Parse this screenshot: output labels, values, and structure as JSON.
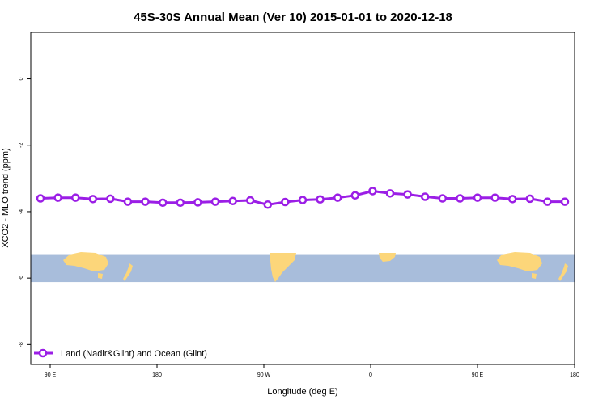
{
  "chart_data": {
    "type": "line",
    "title": "45S-30S Annual Mean (Ver 10)   2015-01-01 to 2020-12-18",
    "xlabel": "Longitude (deg E)",
    "ylabel": "XCO2 - MLO trend (ppm)",
    "xlim": [
      -100,
      180
    ],
    "ylim": [
      -8.6,
      1.4
    ],
    "x_ticks": [
      {
        "value": -90,
        "label": "90 E"
      },
      {
        "value": -35,
        "label": "180"
      },
      {
        "value": 20,
        "label": "90 W"
      },
      {
        "value": 75,
        "label": "0"
      },
      {
        "value": 130,
        "label": "90 E"
      },
      {
        "value": 180,
        "label": "180"
      }
    ],
    "y_ticks": [
      {
        "value": 0,
        "label": "0"
      },
      {
        "value": -2,
        "label": "-2"
      },
      {
        "value": -4,
        "label": "-4"
      },
      {
        "value": -6,
        "label": "-6"
      },
      {
        "value": -8,
        "label": "-8"
      }
    ],
    "grid": false,
    "legend_position": "bottom-left",
    "series": [
      {
        "name": "Land (Nadir&Glint) and Ocean (Glint)",
        "color": "#9b1ee6",
        "x": [
          -95,
          -86,
          -77,
          -68,
          -59,
          -50,
          -41,
          -32,
          -23,
          -14,
          -5,
          4,
          13,
          22,
          31,
          40,
          49,
          58,
          67,
          76,
          85,
          94,
          103,
          112,
          121,
          130,
          139,
          148,
          157,
          166,
          175
        ],
        "y": [
          -3.6,
          -3.58,
          -3.58,
          -3.62,
          -3.61,
          -3.7,
          -3.7,
          -3.73,
          -3.73,
          -3.72,
          -3.7,
          -3.68,
          -3.66,
          -3.79,
          -3.71,
          -3.65,
          -3.63,
          -3.58,
          -3.51,
          -3.38,
          -3.45,
          -3.48,
          -3.55,
          -3.6,
          -3.6,
          -3.58,
          -3.58,
          -3.62,
          -3.61,
          -3.7,
          -3.7
        ]
      }
    ],
    "map_band": {
      "y_range": [
        -6.12,
        -5.28
      ],
      "ocean_color": "#a8bddb",
      "land_color": "#fcd67a"
    }
  }
}
